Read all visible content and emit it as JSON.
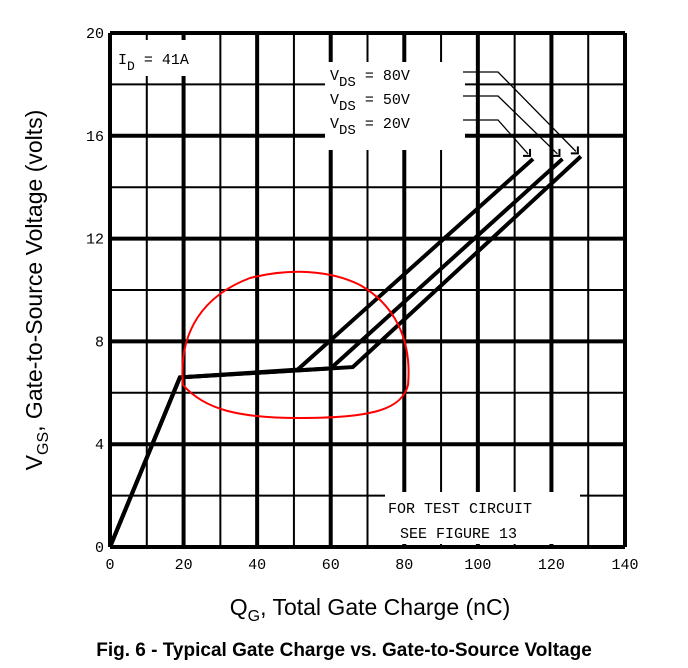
{
  "chart_data": {
    "type": "line",
    "title": "Fig. 6 - Typical Gate Charge vs. Gate-to-Source Voltage",
    "xlabel": "Q_G, Total Gate Charge (nC)",
    "xlabel_main": "Q",
    "xlabel_sub": "G",
    "xlabel_rest": ", Total Gate Charge (nC)",
    "ylabel_main": "V",
    "ylabel_sub": "GS",
    "ylabel_rest": ", Gate-to-Source Voltage (volts)",
    "xlim": [
      0,
      140
    ],
    "ylim": [
      0,
      20
    ],
    "xticks": [
      "0",
      "20",
      "40",
      "60",
      "80",
      "100",
      "120",
      "140"
    ],
    "yticks": [
      "0",
      "4",
      "8",
      "12",
      "16",
      "20"
    ],
    "grid": true,
    "condition": {
      "main": "I",
      "sub": "D",
      "rest": " = 41A"
    },
    "note": [
      "FOR TEST CIRCUIT",
      "SEE FIGURE 13"
    ],
    "series": [
      {
        "name": "VDS = 80V",
        "label_main": "V",
        "label_sub": "DS",
        "label_rest": "=  80V",
        "x": [
          0,
          19,
          66,
          128
        ],
        "y": [
          0,
          6.6,
          7.0,
          15.2
        ]
      },
      {
        "name": "VDS = 50V",
        "label_main": "V",
        "label_sub": "DS",
        "label_rest": "=  50V",
        "x": [
          0,
          19,
          60,
          123
        ],
        "y": [
          0,
          6.6,
          6.95,
          15.1
        ]
      },
      {
        "name": "VDS = 20V",
        "label_main": "V",
        "label_sub": "DS",
        "label_rest": "=  20V",
        "x": [
          0,
          19,
          51,
          115
        ],
        "y": [
          0,
          6.6,
          6.9,
          15.1
        ]
      }
    ],
    "annotation": {
      "type": "hand-drawn circle",
      "color": "#ff0000"
    }
  }
}
